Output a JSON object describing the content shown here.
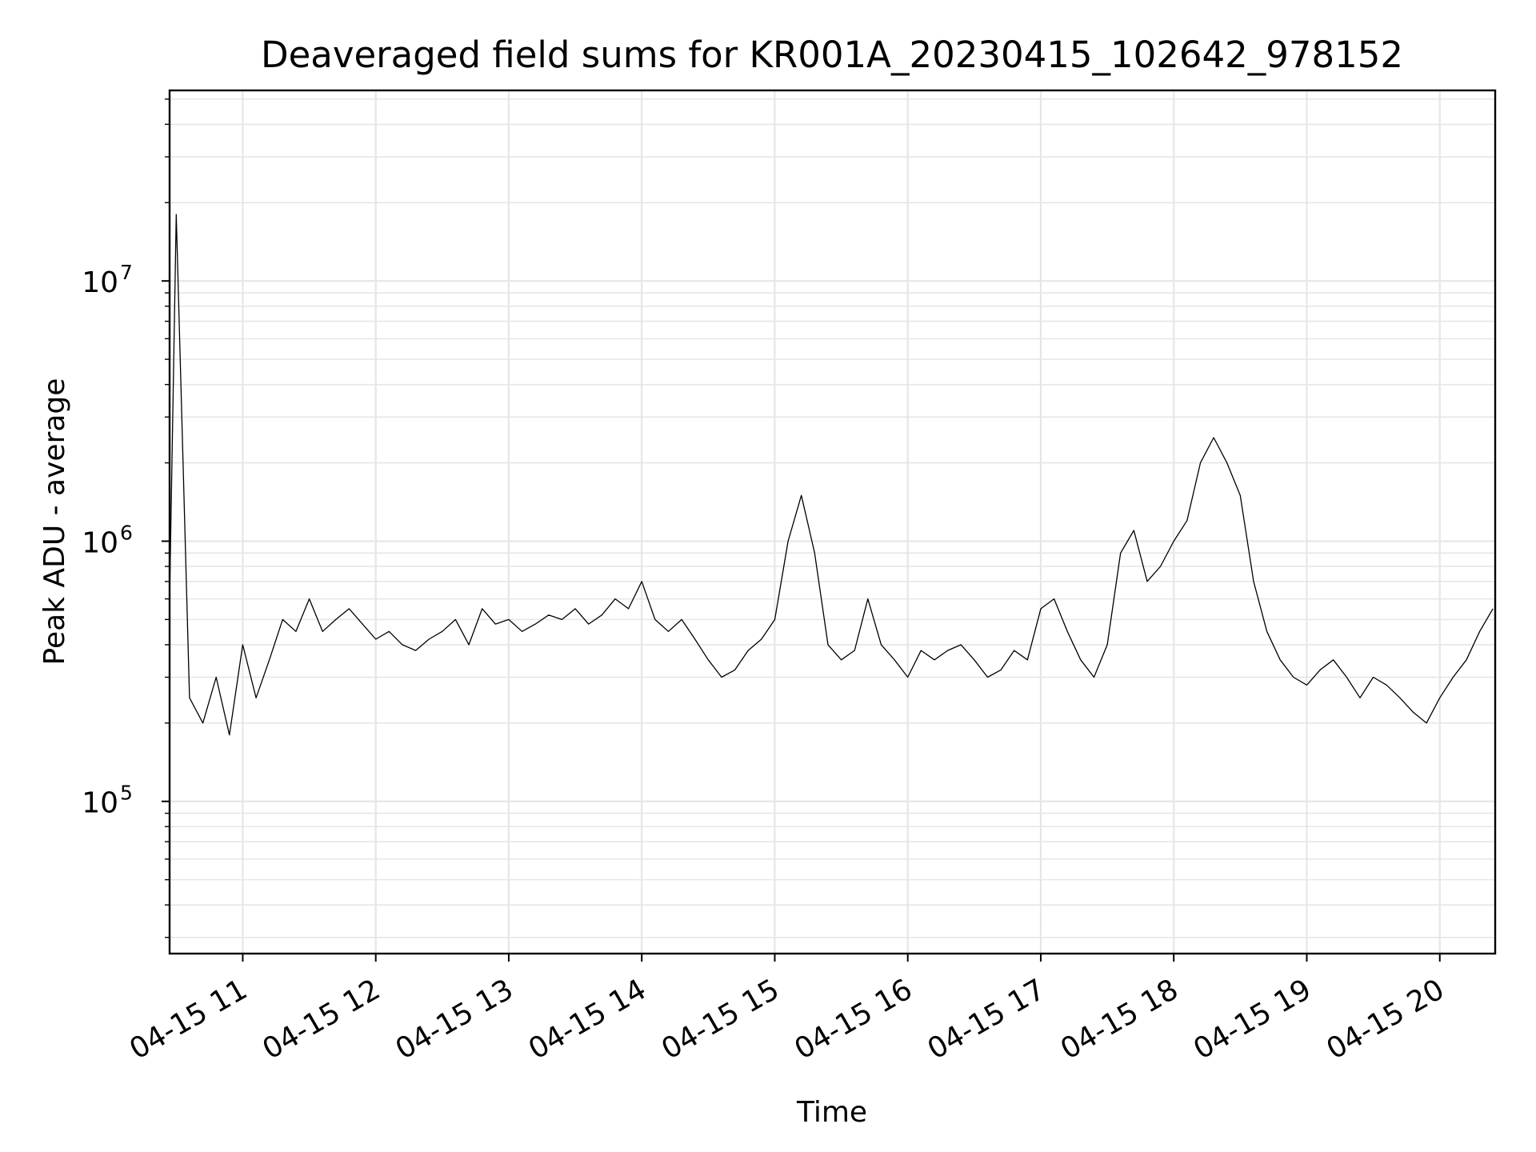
{
  "chart_data": {
    "type": "line",
    "title": "Deaveraged field sums for KR001A_20230415_102642_978152",
    "xlabel": "Time",
    "ylabel": "Peak ADU - average",
    "yscale": "log",
    "ylim": [
      26000,
      54000000
    ],
    "xlim": [
      "04-15 10:27",
      "04-15 20:25"
    ],
    "x_tick_labels": [
      "04-15 11",
      "04-15 12",
      "04-15 13",
      "04-15 14",
      "04-15 15",
      "04-15 16",
      "04-15 17",
      "04-15 18",
      "04-15 19",
      "04-15 20"
    ],
    "y_tick_labels": [
      {
        "base": "10",
        "exp": "5",
        "value": 100000
      },
      {
        "base": "10",
        "exp": "6",
        "value": 1000000
      },
      {
        "base": "10",
        "exp": "7",
        "value": 10000000
      }
    ],
    "grid": true,
    "line_color": "#000000",
    "grid_color": "#e6e6e6",
    "series": [
      {
        "x": [
          "04-15 10:27",
          "04-15 10:30",
          "04-15 10:36",
          "04-15 10:42",
          "04-15 10:48",
          "04-15 10:54",
          "04-15 11:00",
          "04-15 11:06",
          "04-15 11:12",
          "04-15 11:18",
          "04-15 11:24",
          "04-15 11:30",
          "04-15 11:36",
          "04-15 11:42",
          "04-15 11:48",
          "04-15 11:54",
          "04-15 12:00",
          "04-15 12:06",
          "04-15 12:12",
          "04-15 12:18",
          "04-15 12:24",
          "04-15 12:30",
          "04-15 12:36",
          "04-15 12:42",
          "04-15 12:48",
          "04-15 12:54",
          "04-15 13:00",
          "04-15 13:06",
          "04-15 13:12",
          "04-15 13:18",
          "04-15 13:24",
          "04-15 13:30",
          "04-15 13:36",
          "04-15 13:42",
          "04-15 13:48",
          "04-15 13:54",
          "04-15 14:00",
          "04-15 14:06",
          "04-15 14:12",
          "04-15 14:18",
          "04-15 14:24",
          "04-15 14:30",
          "04-15 14:36",
          "04-15 14:42",
          "04-15 14:48",
          "04-15 14:54",
          "04-15 15:00",
          "04-15 15:06",
          "04-15 15:12",
          "04-15 15:18",
          "04-15 15:24",
          "04-15 15:30",
          "04-15 15:36",
          "04-15 15:42",
          "04-15 15:48",
          "04-15 15:54",
          "04-15 16:00",
          "04-15 16:06",
          "04-15 16:12",
          "04-15 16:18",
          "04-15 16:24",
          "04-15 16:30",
          "04-15 16:36",
          "04-15 16:42",
          "04-15 16:48",
          "04-15 16:54",
          "04-15 17:00",
          "04-15 17:06",
          "04-15 17:12",
          "04-15 17:18",
          "04-15 17:24",
          "04-15 17:30",
          "04-15 17:36",
          "04-15 17:42",
          "04-15 17:48",
          "04-15 17:54",
          "04-15 18:00",
          "04-15 18:06",
          "04-15 18:12",
          "04-15 18:18",
          "04-15 18:24",
          "04-15 18:30",
          "04-15 18:36",
          "04-15 18:42",
          "04-15 18:48",
          "04-15 18:54",
          "04-15 19:00",
          "04-15 19:06",
          "04-15 19:12",
          "04-15 19:18",
          "04-15 19:24",
          "04-15 19:30",
          "04-15 19:36",
          "04-15 19:42",
          "04-15 19:48",
          "04-15 19:54",
          "04-15 20:00",
          "04-15 20:06",
          "04-15 20:12",
          "04-15 20:18",
          "04-15 20:24"
        ],
        "y": [
          600000,
          18000000,
          250000,
          200000,
          300000,
          180000,
          400000,
          250000,
          350000,
          500000,
          450000,
          600000,
          450000,
          500000,
          550000,
          480000,
          420000,
          450000,
          400000,
          380000,
          420000,
          450000,
          500000,
          400000,
          550000,
          480000,
          500000,
          450000,
          480000,
          520000,
          500000,
          550000,
          480000,
          520000,
          600000,
          550000,
          700000,
          500000,
          450000,
          500000,
          420000,
          350000,
          300000,
          320000,
          380000,
          420000,
          500000,
          1000000,
          1500000,
          900000,
          400000,
          350000,
          380000,
          600000,
          400000,
          350000,
          300000,
          380000,
          350000,
          380000,
          400000,
          350000,
          300000,
          320000,
          380000,
          350000,
          550000,
          600000,
          450000,
          350000,
          300000,
          400000,
          900000,
          1100000,
          700000,
          800000,
          1000000,
          1200000,
          2000000,
          2500000,
          2000000,
          1500000,
          700000,
          450000,
          350000,
          300000,
          280000,
          320000,
          350000,
          300000,
          250000,
          300000,
          280000,
          250000,
          220000,
          200000,
          250000,
          300000,
          350000,
          450000,
          550000
        ]
      }
    ]
  }
}
